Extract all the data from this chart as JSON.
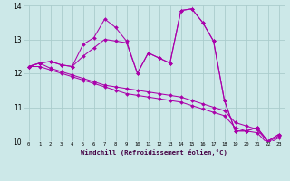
{
  "xlabel": "Windchill (Refroidissement éolien,°C)",
  "hours": [
    0,
    1,
    2,
    3,
    4,
    5,
    6,
    7,
    8,
    9,
    10,
    11,
    12,
    13,
    14,
    15,
    16,
    17,
    18,
    19,
    20,
    21,
    22,
    23
  ],
  "line1": [
    12.2,
    12.3,
    12.35,
    12.25,
    12.2,
    12.85,
    13.05,
    13.6,
    13.35,
    12.95,
    12.0,
    12.6,
    12.45,
    12.3,
    13.85,
    13.9,
    13.5,
    12.95,
    11.2,
    10.3,
    10.3,
    10.4,
    10.0,
    10.2
  ],
  "line2": [
    12.2,
    12.3,
    12.35,
    12.25,
    12.2,
    12.5,
    12.75,
    13.0,
    12.95,
    12.9,
    12.0,
    12.6,
    12.45,
    12.3,
    13.85,
    13.9,
    13.5,
    12.95,
    11.2,
    10.3,
    10.3,
    10.4,
    10.0,
    10.2
  ],
  "line3": [
    12.2,
    12.3,
    12.15,
    12.05,
    11.95,
    11.85,
    11.75,
    11.65,
    11.6,
    11.55,
    11.5,
    11.45,
    11.4,
    11.35,
    11.3,
    11.2,
    11.1,
    11.0,
    10.9,
    10.55,
    10.45,
    10.35,
    9.97,
    10.15
  ],
  "line4": [
    12.2,
    12.2,
    12.1,
    12.0,
    11.9,
    11.8,
    11.7,
    11.6,
    11.5,
    11.4,
    11.35,
    11.3,
    11.25,
    11.2,
    11.15,
    11.05,
    10.95,
    10.85,
    10.75,
    10.4,
    10.3,
    10.25,
    9.92,
    10.1
  ],
  "line_color": "#aa00aa",
  "bg_color": "#cce8e8",
  "grid_color": "#aacccc",
  "ylim": [
    10,
    14
  ],
  "yticks": [
    10,
    11,
    12,
    13,
    14
  ],
  "xlim": [
    -0.5,
    23.5
  ]
}
